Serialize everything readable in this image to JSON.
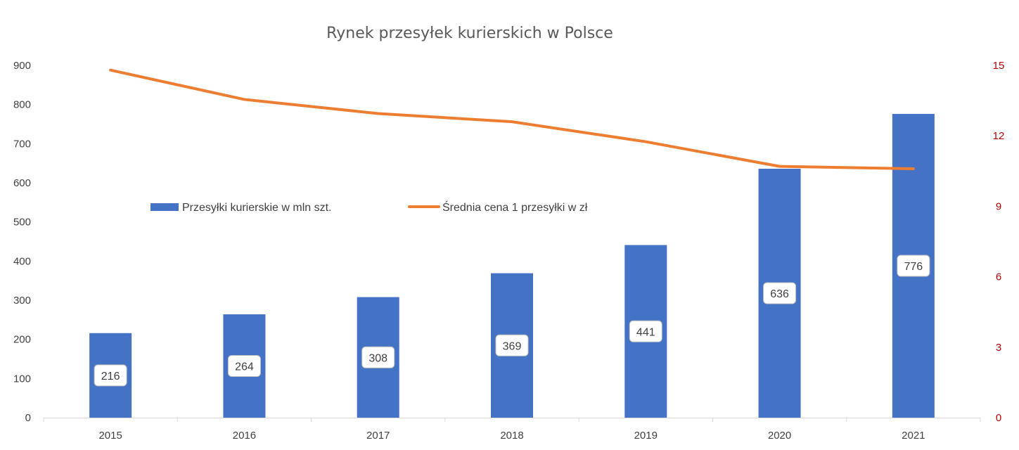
{
  "chart_data": {
    "type": "bar",
    "title": "Rynek przesyłek kurierskich w Polsce",
    "categories": [
      "2015",
      "2016",
      "2017",
      "2018",
      "2019",
      "2020",
      "2021"
    ],
    "series": [
      {
        "name": "Przesyłki kurierskie w mln szt.",
        "type": "bar",
        "axis": "left",
        "color": "#4472c4",
        "values": [
          216,
          264,
          308,
          369,
          441,
          636,
          776
        ],
        "data_labels": [
          "216",
          "264",
          "308",
          "369",
          "441",
          "636",
          "776"
        ]
      },
      {
        "name": "Średnia cena 1 przesyłki w zł",
        "type": "line",
        "axis": "right",
        "color": "#ed7d31",
        "values": [
          14.8,
          13.55,
          12.95,
          12.6,
          11.75,
          10.7,
          10.6
        ]
      }
    ],
    "y_left": {
      "min": 0,
      "max": 900,
      "ticks": [
        0,
        100,
        200,
        300,
        400,
        500,
        600,
        700,
        800,
        900
      ]
    },
    "y_right": {
      "min": 0,
      "max": 15,
      "ticks": [
        0,
        3,
        6,
        9,
        12,
        15
      ],
      "color": "#c00000"
    },
    "xlabel": "",
    "ylabel": "",
    "grid": false,
    "legend_position": "inside-middle-left"
  }
}
